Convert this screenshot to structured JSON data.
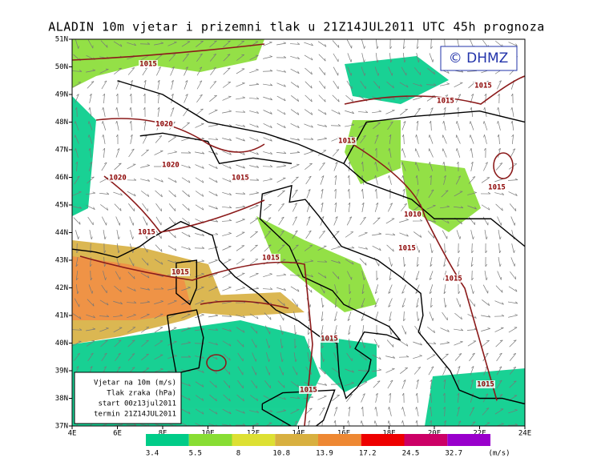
{
  "title": "ALADIN 10m vjetar i prizemni tlak u 21Z14JUL2011 UTC 45h prognoza",
  "logo": "© DHMZ",
  "axes": {
    "lon_labels": [
      "4E",
      "6E",
      "8E",
      "10E",
      "12E",
      "14E",
      "16E",
      "18E",
      "20E",
      "22E",
      "24E"
    ],
    "lat_labels": [
      "51N",
      "50N",
      "49N",
      "48N",
      "47N",
      "46N",
      "45N",
      "44N",
      "43N",
      "42N",
      "41N",
      "40N",
      "39N",
      "38N",
      "37N"
    ]
  },
  "legend_box": {
    "lines": [
      "Vjetar na 10m (m/s)",
      "Tlak zraka (hPa)",
      "start 00z13jul2011",
      "termin 21Z14JUL2011"
    ]
  },
  "colorbar": {
    "values": [
      3.4,
      5.5,
      8,
      10.8,
      13.9,
      17.2,
      24.5,
      32.7
    ],
    "colors": [
      "#00cc88",
      "#88dd33",
      "#dde033",
      "#d8b040",
      "#ee8833",
      "#ee0000",
      "#cc0066",
      "#9900cc"
    ],
    "unit": "(m/s)"
  },
  "isobar_labels": [
    "1015",
    "1020",
    "1020",
    "1020",
    "1015",
    "1015",
    "1015",
    "1015",
    "1015",
    "1015",
    "1015",
    "1015",
    "1010",
    "1015",
    "1015",
    "1015",
    "1015",
    "1015"
  ]
}
